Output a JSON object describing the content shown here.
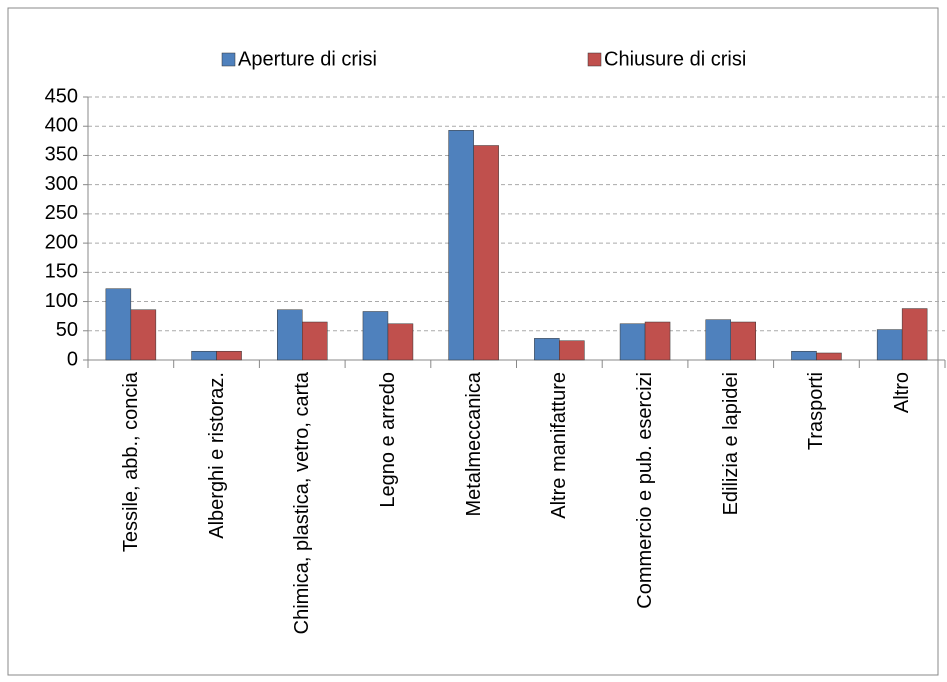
{
  "chart_data": {
    "type": "bar",
    "categories": [
      "Tessile, abb., concia",
      "Alberghi e ristoraz.",
      "Chimica, plastica, vetro, carta",
      "Legno e arredo",
      "Metalmeccanica",
      "Altre manifatture",
      "Commercio e pub. esercizi",
      "Edilizia e lapidei",
      "Trasporti",
      "Altro"
    ],
    "series": [
      {
        "name": "Aperture di crisi",
        "color": "#4f81bd",
        "values": [
          122,
          15,
          86,
          83,
          393,
          37,
          62,
          69,
          15,
          52
        ]
      },
      {
        "name": "Chiusure di crisi",
        "color": "#c0504d",
        "values": [
          86,
          15,
          65,
          62,
          367,
          33,
          65,
          65,
          12,
          88
        ]
      }
    ],
    "ylim": [
      0,
      450
    ],
    "yticks": [
      0,
      50,
      100,
      150,
      200,
      250,
      300,
      350,
      400,
      450
    ],
    "grid": true,
    "legend": "top"
  }
}
